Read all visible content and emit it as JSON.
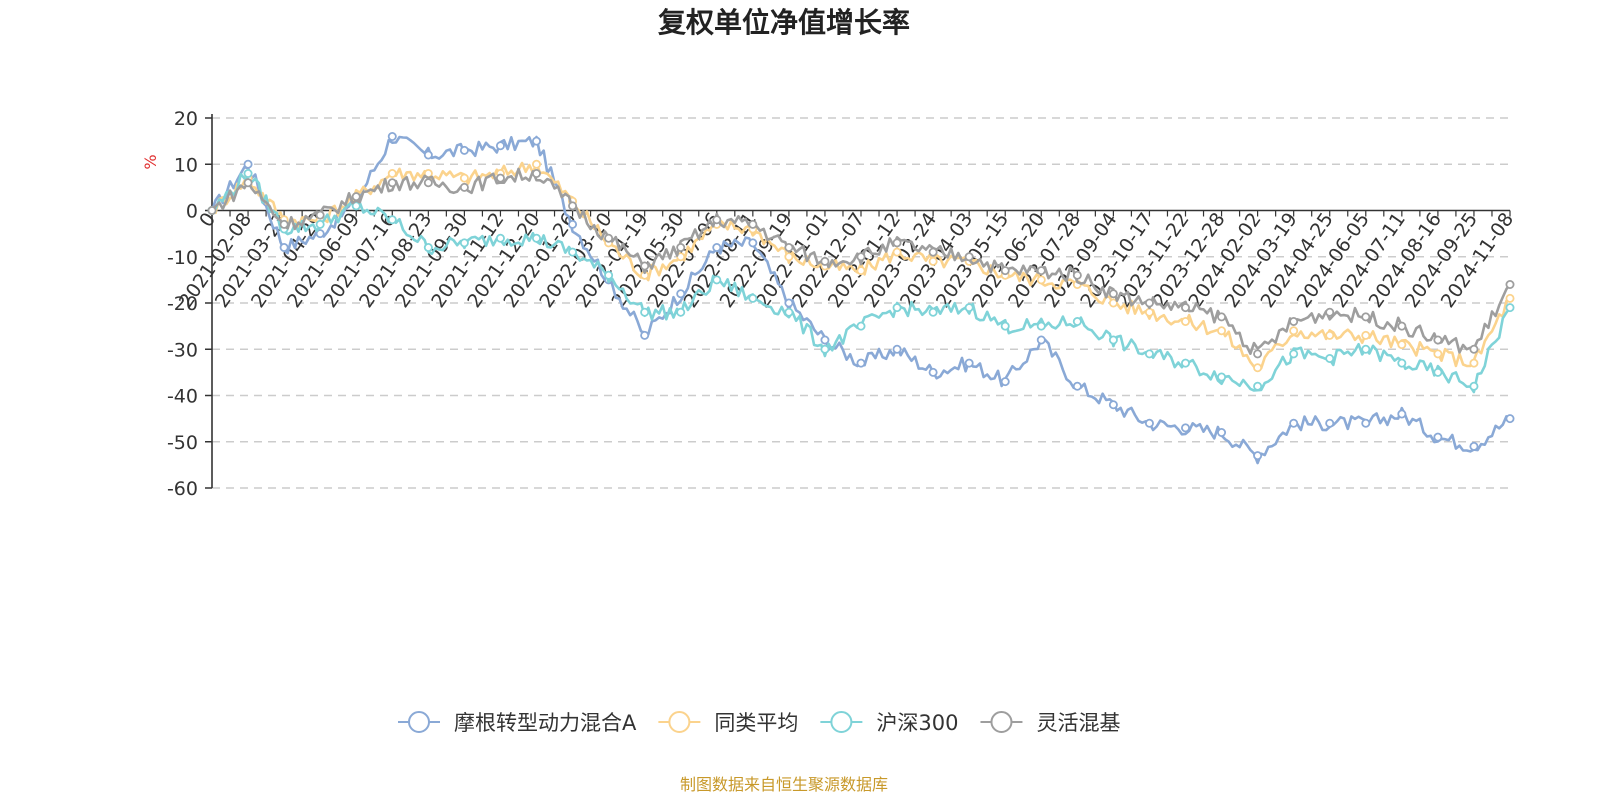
{
  "chart_data": {
    "type": "line",
    "title": "复权单位净值增长率",
    "ylabel": "%",
    "ylim": [
      -60,
      20
    ],
    "yticks": [
      20,
      10,
      0,
      -10,
      -20,
      -30,
      -40,
      -50,
      -60
    ],
    "grid": true,
    "legend_position": "bottom",
    "x": [
      "0",
      "2021-02-08",
      "2021-03-23",
      "2021-04-29",
      "2021-06-09",
      "2021-07-16",
      "2021-08-23",
      "2021-09-30",
      "2021-11-12",
      "2021-12-20",
      "2022-01-26",
      "2022-03-10",
      "2022-04-19",
      "2022-05-30",
      "2022-07-06",
      "2022-08-11",
      "2022-09-19",
      "2022-11-01",
      "2022-12-07",
      "2023-01-12",
      "2023-02-24",
      "2023-04-03",
      "2023-05-15",
      "2023-06-20",
      "2023-07-28",
      "2023-09-04",
      "2023-10-17",
      "2023-11-22",
      "2023-12-28",
      "2024-02-02",
      "2024-03-19",
      "2024-04-25",
      "2024-06-05",
      "2024-07-11",
      "2024-08-16",
      "2024-09-25",
      "2024-11-08"
    ],
    "series": [
      {
        "name": "摩根转型动力混合A",
        "color": "#8aa9d6",
        "values": [
          0,
          10,
          -8,
          -5,
          2,
          16,
          12,
          13,
          14,
          15,
          -3,
          -15,
          -27,
          -18,
          -8,
          -7,
          -20,
          -28,
          -33,
          -30,
          -35,
          -33,
          -37,
          -28,
          -38,
          -42,
          -46,
          -47,
          -48,
          -53,
          -46,
          -46,
          -46,
          -44,
          -49,
          -51,
          -45
        ]
      },
      {
        "name": "同类平均",
        "color": "#fbd38d",
        "values": [
          0,
          7,
          -2,
          -2,
          3,
          8,
          8,
          7,
          8,
          10,
          2,
          -7,
          -14,
          -10,
          -3,
          -4,
          -10,
          -12,
          -13,
          -9,
          -11,
          -11,
          -14,
          -15,
          -16,
          -20,
          -22,
          -24,
          -26,
          -34,
          -26,
          -27,
          -27,
          -29,
          -31,
          -33,
          -19
        ]
      },
      {
        "name": "沪深300",
        "color": "#7fd3d8",
        "values": [
          0,
          8,
          -4,
          -3,
          1,
          -2,
          -8,
          -7,
          -6,
          -6,
          -9,
          -14,
          -22,
          -22,
          -15,
          -19,
          -22,
          -30,
          -25,
          -21,
          -22,
          -21,
          -25,
          -25,
          -24,
          -28,
          -31,
          -33,
          -36,
          -38,
          -31,
          -32,
          -30,
          -33,
          -35,
          -38,
          -21
        ]
      },
      {
        "name": "灵活混基",
        "color": "#9e9e9e",
        "values": [
          0,
          6,
          -3,
          -1,
          3,
          6,
          6,
          5,
          7,
          8,
          1,
          -6,
          -12,
          -8,
          -2,
          -3,
          -8,
          -11,
          -10,
          -7,
          -9,
          -10,
          -13,
          -13,
          -14,
          -18,
          -20,
          -21,
          -23,
          -31,
          -24,
          -22,
          -23,
          -25,
          -28,
          -30,
          -16
        ]
      }
    ]
  },
  "source_note": "制图数据来自恒生聚源数据库"
}
